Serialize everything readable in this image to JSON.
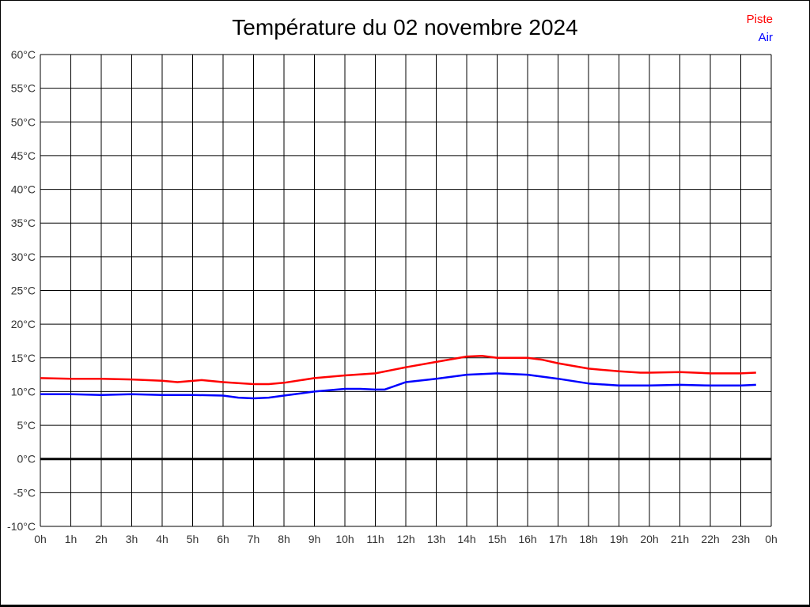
{
  "page": {
    "background": "#ffffff",
    "border_color": "#000000"
  },
  "chart_data": {
    "type": "line",
    "title": "Température du 02 novembre 2024",
    "xlabel": "",
    "ylabel": "",
    "grid": true,
    "legend_position": "top-right",
    "xlim": [
      0,
      24
    ],
    "ylim": [
      -10,
      60
    ],
    "y_tick_values": [
      60,
      55,
      50,
      45,
      40,
      35,
      30,
      25,
      20,
      15,
      10,
      5,
      0,
      -5,
      -10
    ],
    "y_tick_labels": [
      "60°C",
      "55°C",
      "50°C",
      "45°C",
      "40°C",
      "35°C",
      "30°C",
      "25°C",
      "20°C",
      "15°C",
      "10°C",
      "5°C",
      "0°C",
      "-5°C",
      "-10°C"
    ],
    "x_tick_values": [
      0,
      1,
      2,
      3,
      4,
      5,
      6,
      7,
      8,
      9,
      10,
      11,
      12,
      13,
      14,
      15,
      16,
      17,
      18,
      19,
      20,
      21,
      22,
      23,
      24
    ],
    "x_tick_labels": [
      "0h",
      "1h",
      "2h",
      "3h",
      "4h",
      "5h",
      "6h",
      "7h",
      "8h",
      "9h",
      "10h",
      "11h",
      "12h",
      "13h",
      "14h",
      "15h",
      "16h",
      "17h",
      "18h",
      "19h",
      "20h",
      "21h",
      "22h",
      "23h",
      "0h"
    ],
    "zero_line": {
      "value": 0,
      "color": "#000000",
      "width": 3
    },
    "series": [
      {
        "name": "Piste",
        "color": "#ff0000",
        "x": [
          0,
          1,
          2,
          3,
          4,
          4.5,
          5.3,
          6,
          7,
          7.5,
          8,
          9,
          10,
          11,
          12,
          13,
          14,
          14.5,
          15,
          15.5,
          16,
          16.5,
          17,
          18,
          19,
          19.7,
          20,
          21,
          22,
          23,
          23.5
        ],
        "y": [
          12.0,
          11.9,
          11.9,
          11.8,
          11.6,
          11.4,
          11.7,
          11.4,
          11.1,
          11.1,
          11.3,
          12.0,
          12.4,
          12.7,
          13.6,
          14.4,
          15.2,
          15.3,
          15.0,
          15.0,
          15.0,
          14.7,
          14.2,
          13.4,
          13.0,
          12.8,
          12.8,
          12.9,
          12.7,
          12.7,
          12.8
        ]
      },
      {
        "name": "Air",
        "color": "#0000ff",
        "x": [
          0,
          1,
          2,
          3,
          4,
          5,
          6,
          6.5,
          7,
          7.5,
          8,
          9,
          10,
          10.5,
          11,
          11.3,
          12,
          13,
          14,
          15,
          16,
          17,
          18,
          19,
          20,
          21,
          22,
          23,
          23.5
        ],
        "y": [
          9.6,
          9.6,
          9.5,
          9.6,
          9.5,
          9.5,
          9.4,
          9.1,
          9.0,
          9.1,
          9.4,
          10.0,
          10.4,
          10.4,
          10.3,
          10.3,
          11.4,
          11.9,
          12.5,
          12.7,
          12.5,
          11.9,
          11.2,
          10.9,
          10.9,
          11.0,
          10.9,
          10.9,
          11.0
        ]
      }
    ]
  }
}
